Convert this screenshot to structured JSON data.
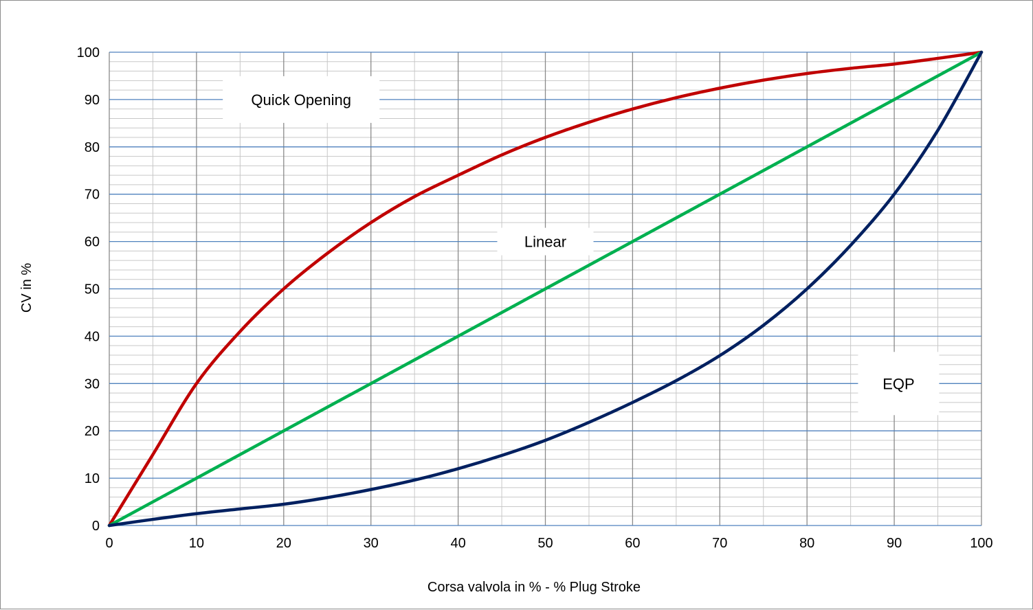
{
  "chart_data": {
    "type": "line",
    "title": "",
    "xlabel": "Corsa valvola in % - % Plug Stroke",
    "ylabel": "CV in %",
    "xlim": [
      0,
      100
    ],
    "ylim": [
      0,
      100
    ],
    "x_ticks": [
      0,
      10,
      20,
      30,
      40,
      50,
      60,
      70,
      80,
      90,
      100
    ],
    "y_ticks": [
      0,
      10,
      20,
      30,
      40,
      50,
      60,
      70,
      80,
      90,
      100
    ],
    "grid": true,
    "minor_x_step": 5,
    "minor_y_step": 2,
    "legend": "none",
    "series": [
      {
        "name": "Quick Opening",
        "color": "#c00000",
        "x": [
          0,
          5,
          10,
          15,
          20,
          25,
          30,
          35,
          40,
          45,
          50,
          55,
          60,
          65,
          70,
          75,
          80,
          85,
          90,
          95,
          100
        ],
        "y": [
          0,
          15,
          30,
          41,
          50,
          57.5,
          64,
          69.5,
          74,
          78.3,
          82,
          85.2,
          88,
          90.4,
          92.4,
          94.1,
          95.5,
          96.6,
          97.5,
          98.7,
          100
        ]
      },
      {
        "name": "Linear",
        "color": "#00b050",
        "x": [
          0,
          100
        ],
        "y": [
          0,
          100
        ]
      },
      {
        "name": "EQP",
        "color": "#002060",
        "x": [
          0,
          5,
          10,
          15,
          20,
          25,
          30,
          35,
          40,
          45,
          50,
          55,
          60,
          65,
          70,
          75,
          80,
          85,
          90,
          95,
          100
        ],
        "y": [
          0,
          1.3,
          2.5,
          3.5,
          4.5,
          5.9,
          7.6,
          9.6,
          12,
          14.8,
          18,
          21.8,
          26,
          30.6,
          35.9,
          42.3,
          50,
          59.2,
          70,
          83.5,
          100
        ]
      }
    ],
    "annotations": [
      {
        "text": "Quick Opening",
        "x": 22,
        "y": 90
      },
      {
        "text": "Linear",
        "x": 50,
        "y": 60
      },
      {
        "text": "EQP",
        "x": 90.5,
        "y": 30
      }
    ]
  }
}
